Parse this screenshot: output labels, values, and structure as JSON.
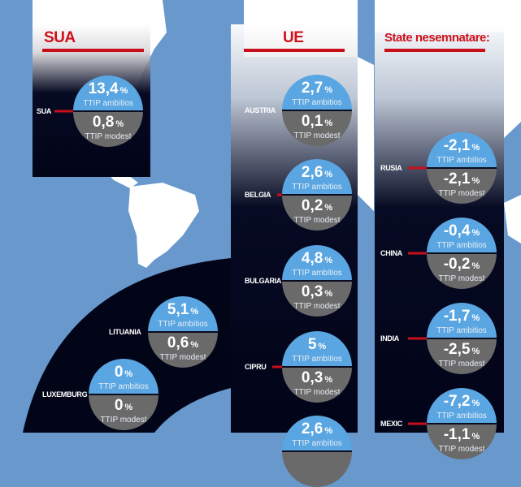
{
  "colors": {
    "ocean": "#6898cc",
    "land": "#ffffff",
    "panel": "#020418",
    "ambitious": "#5aa6e2",
    "modest": "#6a6a6a",
    "accent": "#c8101a"
  },
  "labels": {
    "ambitious": "TTIP ambitios",
    "modest": "TTIP modest",
    "percent": "%"
  },
  "sections": {
    "usa": "SUA",
    "eu": "UE",
    "non_signatory": "State nesemnatare:"
  },
  "countries": [
    {
      "name": "SUA",
      "ambitious": "13,4",
      "modest": "0,8",
      "group": "usa"
    },
    {
      "name": "AUSTRIA",
      "ambitious": "2,7",
      "modest": "0,1",
      "group": "eu"
    },
    {
      "name": "BELGIA",
      "ambitious": "2,6",
      "modest": "0,2",
      "group": "eu"
    },
    {
      "name": "BULGARIA",
      "ambitious": "4,8",
      "modest": "0,3",
      "group": "eu"
    },
    {
      "name": "CIPRU",
      "ambitious": "5",
      "modest": "0,3",
      "group": "eu"
    },
    {
      "name": "",
      "ambitious": "2,6",
      "modest": "",
      "group": "eu"
    },
    {
      "name": "LITUANIA",
      "ambitious": "5,1",
      "modest": "0,6",
      "group": "eu"
    },
    {
      "name": "LUXEMBURG",
      "ambitious": "0",
      "modest": "0",
      "group": "eu"
    },
    {
      "name": "RUSIA",
      "ambitious": "-2,1",
      "modest": "-2,1",
      "group": "non_signatory"
    },
    {
      "name": "CHINA",
      "ambitious": "-0,4",
      "modest": "-0,2",
      "group": "non_signatory"
    },
    {
      "name": "INDIA",
      "ambitious": "-1,7",
      "modest": "-2,5",
      "group": "non_signatory"
    },
    {
      "name": "MEXIC",
      "ambitious": "-7,2",
      "modest": "-1,1",
      "group": "non_signatory"
    }
  ]
}
